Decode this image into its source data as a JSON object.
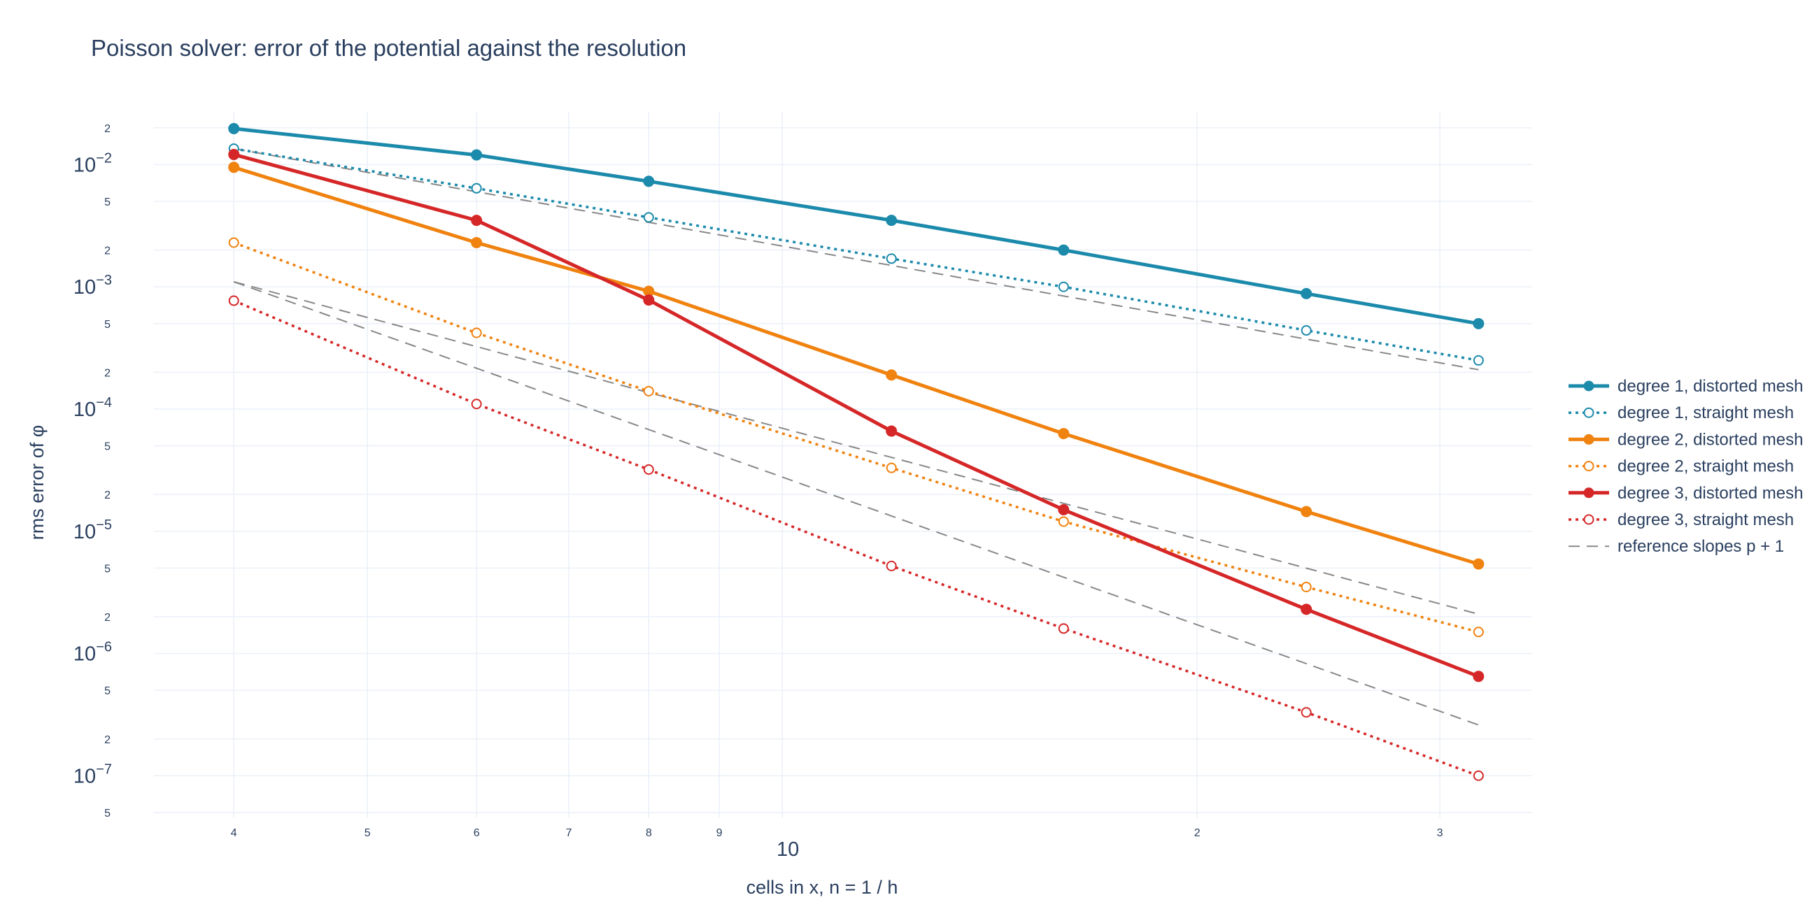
{
  "chart_data": {
    "type": "line",
    "title": "Poisson solver: error of the potential against the resolution",
    "xlabel": "cells in x, n = 1 / h",
    "ylabel": "rms error of φ",
    "x_scale": "log",
    "y_scale": "log",
    "xlim": [
      3.5,
      35
    ],
    "ylim": [
      4.5e-08,
      0.027
    ],
    "x_minor_ticks": [
      {
        "value": 4,
        "label": "4"
      },
      {
        "value": 5,
        "label": "5"
      },
      {
        "value": 6,
        "label": "6"
      },
      {
        "value": 7,
        "label": "7"
      },
      {
        "value": 8,
        "label": "8"
      },
      {
        "value": 9,
        "label": "9"
      },
      {
        "value": 20,
        "label": "2"
      },
      {
        "value": 30,
        "label": "3"
      }
    ],
    "x_major_ticks": [
      {
        "value": 10,
        "label": "10"
      }
    ],
    "y_major_ticks": [
      {
        "value": 0.01,
        "base": "10",
        "exp": "−2"
      },
      {
        "value": 0.001,
        "base": "10",
        "exp": "−3"
      },
      {
        "value": 0.0001,
        "base": "10",
        "exp": "−4"
      },
      {
        "value": 1e-05,
        "base": "10",
        "exp": "−5"
      },
      {
        "value": 1e-06,
        "base": "10",
        "exp": "−6"
      },
      {
        "value": 1e-07,
        "base": "10",
        "exp": "−7"
      }
    ],
    "y_minor_ticks": [
      {
        "value": 0.02,
        "label": "2"
      },
      {
        "value": 0.005,
        "label": "5"
      },
      {
        "value": 0.002,
        "label": "2"
      },
      {
        "value": 0.0005,
        "label": "5"
      },
      {
        "value": 0.0002,
        "label": "2"
      },
      {
        "value": 5e-05,
        "label": "5"
      },
      {
        "value": 2e-05,
        "label": "2"
      },
      {
        "value": 5e-06,
        "label": "5"
      },
      {
        "value": 2e-06,
        "label": "2"
      },
      {
        "value": 5e-07,
        "label": "5"
      },
      {
        "value": 2e-07,
        "label": "2"
      },
      {
        "value": 5e-08,
        "label": "5"
      }
    ],
    "grid": true,
    "legend_position": "right",
    "x": [
      4,
      6,
      8,
      12,
      16,
      24,
      32
    ],
    "series": [
      {
        "name": "degree 1, distorted mesh",
        "color": "#1b8aab",
        "style": "solid",
        "marker": "filled",
        "values": [
          0.0197,
          0.012,
          0.0073,
          0.0035,
          0.002,
          0.00088,
          0.0005
        ]
      },
      {
        "name": "degree 1, straight mesh",
        "color": "#1b8aab",
        "style": "dotted",
        "marker": "open",
        "values": [
          0.0135,
          0.0064,
          0.0037,
          0.0017,
          0.001,
          0.00044,
          0.00025
        ]
      },
      {
        "name": "degree 2, distorted mesh",
        "color": "#f0820f",
        "style": "solid",
        "marker": "filled",
        "values": [
          0.0095,
          0.0023,
          0.00092,
          0.00019,
          6.3e-05,
          1.45e-05,
          5.4e-06
        ]
      },
      {
        "name": "degree 2, straight mesh",
        "color": "#f0820f",
        "style": "dotted",
        "marker": "open",
        "values": [
          0.0023,
          0.00042,
          0.00014,
          3.3e-05,
          1.2e-05,
          3.5e-06,
          1.5e-06
        ]
      },
      {
        "name": "degree 3, distorted mesh",
        "color": "#d62728",
        "style": "solid",
        "marker": "filled",
        "values": [
          0.0121,
          0.0035,
          0.00078,
          6.6e-05,
          1.5e-05,
          2.3e-06,
          6.5e-07
        ]
      },
      {
        "name": "degree 3, straight mesh",
        "color": "#d62728",
        "style": "dotted",
        "marker": "open",
        "values": [
          0.00077,
          0.00011,
          3.2e-05,
          5.2e-06,
          1.6e-06,
          3.3e-07,
          1e-07
        ]
      }
    ],
    "reference_slopes": {
      "name": "reference slopes p + 1",
      "color": "#888888",
      "style": "dashed",
      "lines": [
        {
          "x": [
            4,
            32
          ],
          "values": [
            0.0135,
            0.00021
          ]
        },
        {
          "x": [
            4,
            32
          ],
          "values": [
            0.0011,
            2.1e-06
          ]
        },
        {
          "x": [
            4,
            32
          ],
          "values": [
            0.0011,
            2.6e-07
          ]
        }
      ]
    }
  }
}
